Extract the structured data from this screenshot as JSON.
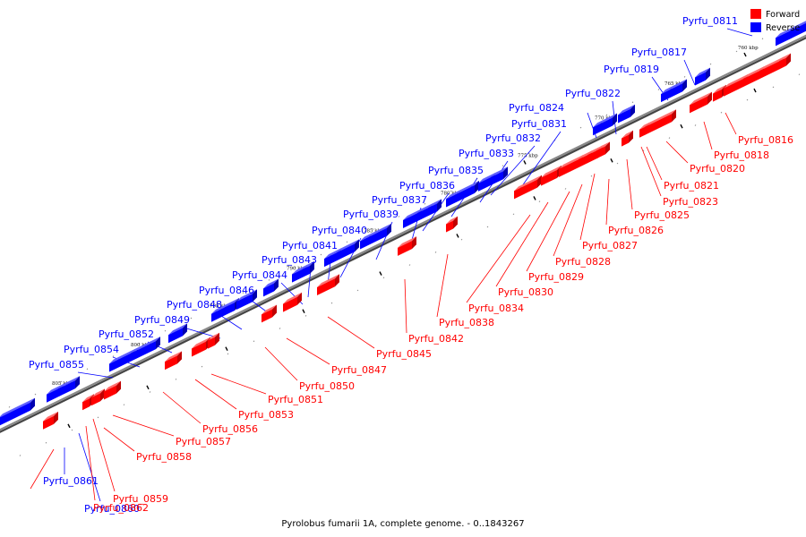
{
  "caption": "Pyrolobus fumarii 1A, complete genome. - 0..1843267",
  "legend": {
    "forward": {
      "label": "Forward",
      "color": "#ff0000"
    },
    "reverse": {
      "label": "Reverse",
      "color": "#0000ff"
    }
  },
  "axis_color": "#888888",
  "kbp_markers": [
    "760 kbp",
    "765 kbp",
    "770 kbp",
    "775 kbp",
    "780 kbp",
    "785 kbp",
    "790 kbp",
    "795 kbp",
    "800 kbp",
    "805 kbp"
  ],
  "reverse_genes": [
    "Pyrfu_0811",
    "Pyrfu_0817",
    "Pyrfu_0819",
    "Pyrfu_0822",
    "Pyrfu_0824",
    "Pyrfu_0831",
    "Pyrfu_0832",
    "Pyrfu_0833",
    "Pyrfu_0835",
    "Pyrfu_0836",
    "Pyrfu_0837",
    "Pyrfu_0839",
    "Pyrfu_0840",
    "Pyrfu_0841",
    "Pyrfu_0843",
    "Pyrfu_0844",
    "Pyrfu_0846",
    "Pyrfu_0848",
    "Pyrfu_0849",
    "Pyrfu_0852",
    "Pyrfu_0854",
    "Pyrfu_0855",
    "Pyrfu_0861",
    "Pyrfu_0860"
  ],
  "forward_genes": [
    "Pyrfu_0816",
    "Pyrfu_0818",
    "Pyrfu_0820",
    "Pyrfu_0821",
    "Pyrfu_0823",
    "Pyrfu_0825",
    "Pyrfu_0826",
    "Pyrfu_0827",
    "Pyrfu_0828",
    "Pyrfu_0829",
    "Pyrfu_0830",
    "Pyrfu_0834",
    "Pyrfu_0838",
    "Pyrfu_0842",
    "Pyrfu_0845",
    "Pyrfu_0847",
    "Pyrfu_0850",
    "Pyrfu_0851",
    "Pyrfu_0853",
    "Pyrfu_0856",
    "Pyrfu_0857",
    "Pyrfu_0858",
    "Pyrfu_0859",
    "Pyrfu_0862"
  ]
}
